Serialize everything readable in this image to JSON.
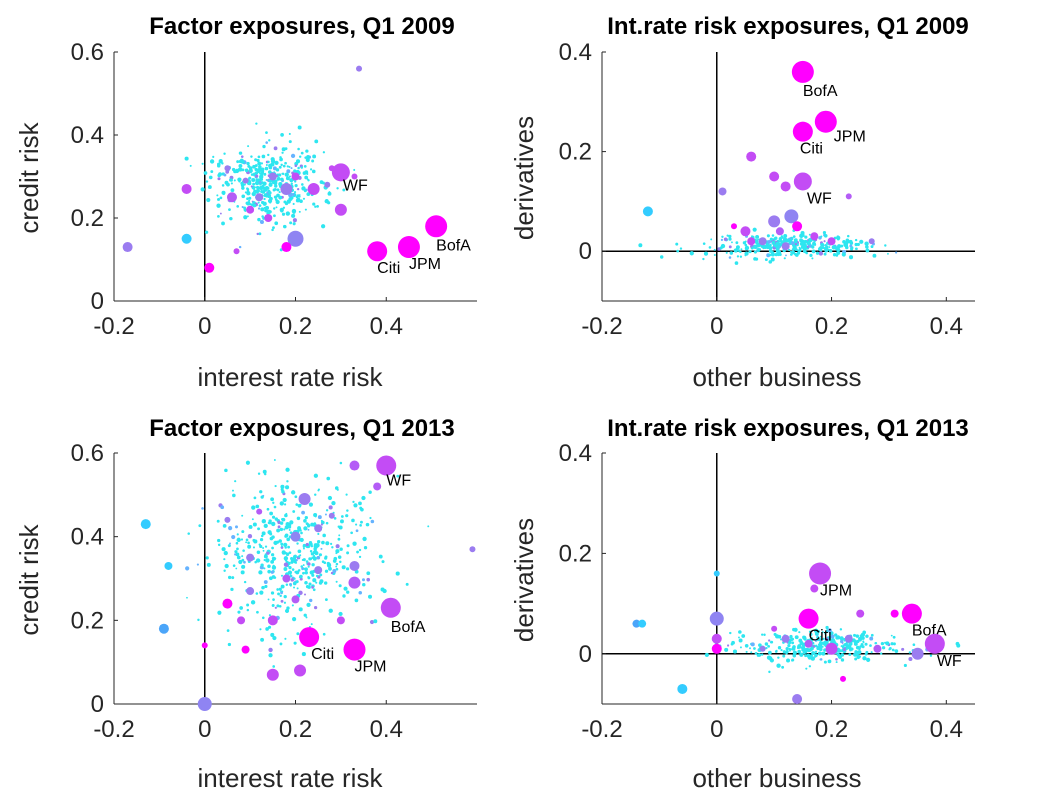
{
  "chart_data": [
    {
      "type": "scatter",
      "title": "Factor exposures, Q1 2009",
      "xlabel": "interest rate risk",
      "ylabel": "credit risk",
      "xlim": [
        -0.2,
        0.6
      ],
      "ylim": [
        0,
        0.6
      ],
      "xticks": [
        "-0.2",
        "0",
        "0.2",
        "0.4"
      ],
      "yticks": [
        "0",
        "0.2",
        "0.4",
        "0.6"
      ],
      "grid": false,
      "reference_lines": {
        "x": 0,
        "y": 0
      },
      "labeled_points": [
        {
          "label": "WF",
          "x": 0.3,
          "y": 0.31,
          "size": 9,
          "color": "#c34cf5"
        },
        {
          "label": "BofA",
          "x": 0.51,
          "y": 0.18,
          "size": 11,
          "color": "#ff00ff"
        },
        {
          "label": "Citi",
          "x": 0.38,
          "y": 0.12,
          "size": 10,
          "color": "#ff00ff"
        },
        {
          "label": "JPM",
          "x": 0.45,
          "y": 0.13,
          "size": 11,
          "color": "#ff00ff"
        }
      ],
      "points": [
        {
          "x": -0.17,
          "y": 0.13,
          "size": 5,
          "color": "#9b7cf0"
        },
        {
          "x": -0.04,
          "y": 0.27,
          "size": 5,
          "color": "#c34cf5"
        },
        {
          "x": -0.04,
          "y": 0.15,
          "size": 5,
          "color": "#33ccff"
        },
        {
          "x": 0.01,
          "y": 0.08,
          "size": 5,
          "color": "#ff00ff"
        },
        {
          "x": 0.2,
          "y": 0.15,
          "size": 8,
          "color": "#8f84f2"
        },
        {
          "x": 0.18,
          "y": 0.27,
          "size": 6,
          "color": "#9b7cf0"
        },
        {
          "x": 0.24,
          "y": 0.27,
          "size": 6,
          "color": "#c34cf5"
        },
        {
          "x": 0.18,
          "y": 0.13,
          "size": 5,
          "color": "#ff00ff"
        },
        {
          "x": 0.06,
          "y": 0.25,
          "size": 5,
          "color": "#b45cf6"
        },
        {
          "x": 0.3,
          "y": 0.22,
          "size": 6,
          "color": "#c34cf5"
        },
        {
          "x": 0.12,
          "y": 0.25,
          "size": 4,
          "color": "#9b7cf0"
        },
        {
          "x": 0.1,
          "y": 0.22,
          "size": 4,
          "color": "#c34cf5"
        },
        {
          "x": 0.15,
          "y": 0.3,
          "size": 4,
          "color": "#9b7cf0"
        },
        {
          "x": 0.05,
          "y": 0.32,
          "size": 3,
          "color": "#9b7cf0"
        },
        {
          "x": 0.2,
          "y": 0.3,
          "size": 4,
          "color": "#c34cf5"
        },
        {
          "x": 0.14,
          "y": 0.2,
          "size": 4,
          "color": "#c34cf5"
        },
        {
          "x": 0.27,
          "y": 0.28,
          "size": 3,
          "color": "#9b7cf0"
        },
        {
          "x": 0.28,
          "y": 0.32,
          "size": 3,
          "color": "#c34cf5"
        },
        {
          "x": 0.09,
          "y": 0.29,
          "size": 3,
          "color": "#9b7cf0"
        },
        {
          "x": 0.34,
          "y": 0.56,
          "size": 3,
          "color": "#9b7cf0"
        },
        {
          "x": 0.07,
          "y": 0.12,
          "size": 3,
          "color": "#c34cf5"
        },
        {
          "x": 0.33,
          "y": 0.3,
          "size": 3,
          "color": "#c34cf5"
        }
      ]
    },
    {
      "type": "scatter",
      "title": "Int.rate risk exposures, Q1 2009",
      "xlabel": "other business",
      "ylabel": "derivatives",
      "xlim": [
        -0.2,
        0.45
      ],
      "ylim": [
        -0.1,
        0.4
      ],
      "xticks": [
        "-0.2",
        "0",
        "0.2",
        "0.4"
      ],
      "yticks": [
        "0",
        "0.2",
        "0.4"
      ],
      "grid": false,
      "reference_lines": {
        "x": 0,
        "y": 0
      },
      "labeled_points": [
        {
          "label": "BofA",
          "x": 0.15,
          "y": 0.36,
          "size": 11,
          "color": "#ff00ff"
        },
        {
          "label": "Citi",
          "x": 0.15,
          "y": 0.24,
          "size": 10,
          "color": "#ff00ff"
        },
        {
          "label": "JPM",
          "x": 0.19,
          "y": 0.26,
          "size": 11,
          "color": "#ff00ff"
        },
        {
          "label": "WF",
          "x": 0.15,
          "y": 0.14,
          "size": 9,
          "color": "#c34cf5"
        }
      ],
      "points": [
        {
          "x": -0.12,
          "y": 0.08,
          "size": 5,
          "color": "#33ccff"
        },
        {
          "x": 0.06,
          "y": 0.19,
          "size": 5,
          "color": "#c34cf5"
        },
        {
          "x": 0.01,
          "y": 0.12,
          "size": 4,
          "color": "#9b7cf0"
        },
        {
          "x": 0.13,
          "y": 0.07,
          "size": 7,
          "color": "#8f84f2"
        },
        {
          "x": 0.1,
          "y": 0.15,
          "size": 5,
          "color": "#c34cf5"
        },
        {
          "x": 0.12,
          "y": 0.13,
          "size": 5,
          "color": "#c34cf5"
        },
        {
          "x": 0.1,
          "y": 0.06,
          "size": 6,
          "color": "#9b7cf0"
        },
        {
          "x": 0.14,
          "y": 0.05,
          "size": 5,
          "color": "#ff00ff"
        },
        {
          "x": 0.05,
          "y": 0.04,
          "size": 5,
          "color": "#c34cf5"
        },
        {
          "x": 0.11,
          "y": 0.04,
          "size": 4,
          "color": "#b45cf6"
        },
        {
          "x": 0.08,
          "y": 0.02,
          "size": 4,
          "color": "#9b7cf0"
        },
        {
          "x": 0.2,
          "y": 0.02,
          "size": 4,
          "color": "#c34cf5"
        },
        {
          "x": 0.23,
          "y": 0.11,
          "size": 3,
          "color": "#b45cf6"
        },
        {
          "x": 0.03,
          "y": 0.05,
          "size": 3,
          "color": "#ff00ff"
        },
        {
          "x": 0.17,
          "y": 0.03,
          "size": 4,
          "color": "#c34cf5"
        },
        {
          "x": 0.06,
          "y": 0.02,
          "size": 4,
          "color": "#c34cf5"
        },
        {
          "x": 0.27,
          "y": 0.02,
          "size": 3,
          "color": "#9b7cf0"
        },
        {
          "x": 0.12,
          "y": 0.01,
          "size": 4,
          "color": "#9b7cf0"
        }
      ]
    },
    {
      "type": "scatter",
      "title": "Factor exposures, Q1 2013",
      "xlabel": "interest rate risk",
      "ylabel": "credit risk",
      "xlim": [
        -0.2,
        0.6
      ],
      "ylim": [
        0,
        0.6
      ],
      "xticks": [
        "-0.2",
        "0",
        "0.2",
        "0.4"
      ],
      "yticks": [
        "0",
        "0.2",
        "0.4",
        "0.6"
      ],
      "grid": false,
      "reference_lines": {
        "x": 0,
        "y": 0
      },
      "labeled_points": [
        {
          "label": "WF",
          "x": 0.4,
          "y": 0.57,
          "size": 10,
          "color": "#c34cf5"
        },
        {
          "label": "BofA",
          "x": 0.41,
          "y": 0.23,
          "size": 10,
          "color": "#c34cf5"
        },
        {
          "label": "Citi",
          "x": 0.23,
          "y": 0.16,
          "size": 10,
          "color": "#ff00ff"
        },
        {
          "label": "JPM",
          "x": 0.33,
          "y": 0.13,
          "size": 11,
          "color": "#ff00ff"
        }
      ],
      "points": [
        {
          "x": -0.13,
          "y": 0.43,
          "size": 5,
          "color": "#33ccff"
        },
        {
          "x": -0.08,
          "y": 0.33,
          "size": 4,
          "color": "#33ccff"
        },
        {
          "x": -0.09,
          "y": 0.18,
          "size": 5,
          "color": "#4ba5f9"
        },
        {
          "x": 0.0,
          "y": 0.0,
          "size": 7,
          "color": "#8f84f2"
        },
        {
          "x": 0.21,
          "y": 0.08,
          "size": 6,
          "color": "#c34cf5"
        },
        {
          "x": 0.15,
          "y": 0.07,
          "size": 6,
          "color": "#c34cf5"
        },
        {
          "x": 0.33,
          "y": 0.57,
          "size": 5,
          "color": "#b45cf6"
        },
        {
          "x": 0.22,
          "y": 0.49,
          "size": 6,
          "color": "#9b7cf0"
        },
        {
          "x": 0.33,
          "y": 0.33,
          "size": 5,
          "color": "#9b7cf0"
        },
        {
          "x": 0.33,
          "y": 0.29,
          "size": 6,
          "color": "#b45cf6"
        },
        {
          "x": 0.38,
          "y": 0.52,
          "size": 4,
          "color": "#b45cf6"
        },
        {
          "x": 0.2,
          "y": 0.4,
          "size": 5,
          "color": "#8f84f2"
        },
        {
          "x": 0.15,
          "y": 0.2,
          "size": 5,
          "color": "#c34cf5"
        },
        {
          "x": 0.05,
          "y": 0.24,
          "size": 5,
          "color": "#ff00ff"
        },
        {
          "x": 0.18,
          "y": 0.3,
          "size": 4,
          "color": "#b45cf6"
        },
        {
          "x": 0.1,
          "y": 0.27,
          "size": 4,
          "color": "#9b7cf0"
        },
        {
          "x": 0.1,
          "y": 0.35,
          "size": 4,
          "color": "#9b7cf0"
        },
        {
          "x": 0.25,
          "y": 0.42,
          "size": 4,
          "color": "#9b7cf0"
        },
        {
          "x": 0.3,
          "y": 0.2,
          "size": 4,
          "color": "#c34cf5"
        },
        {
          "x": 0.05,
          "y": 0.44,
          "size": 3,
          "color": "#9b7cf0"
        },
        {
          "x": 0.08,
          "y": 0.2,
          "size": 4,
          "color": "#c34cf5"
        },
        {
          "x": 0.09,
          "y": 0.13,
          "size": 4,
          "color": "#ff00ff"
        },
        {
          "x": 0.2,
          "y": 0.25,
          "size": 4,
          "color": "#b45cf6"
        },
        {
          "x": 0.25,
          "y": 0.32,
          "size": 4,
          "color": "#9b7cf0"
        },
        {
          "x": 0.28,
          "y": 0.45,
          "size": 3,
          "color": "#9b7cf0"
        },
        {
          "x": 0.59,
          "y": 0.37,
          "size": 3,
          "color": "#9b7cf0"
        },
        {
          "x": 0.0,
          "y": 0.14,
          "size": 3,
          "color": "#ff00ff"
        },
        {
          "x": 0.12,
          "y": 0.46,
          "size": 3,
          "color": "#b45cf6"
        }
      ]
    },
    {
      "type": "scatter",
      "title": "Int.rate risk exposures, Q1 2013",
      "xlabel": "other business",
      "ylabel": "derivatives",
      "xlim": [
        -0.2,
        0.45
      ],
      "ylim": [
        -0.1,
        0.4
      ],
      "xticks": [
        "-0.2",
        "0",
        "0.2",
        "0.4"
      ],
      "yticks": [
        "0",
        "0.2",
        "0.4"
      ],
      "grid": false,
      "reference_lines": {
        "x": 0,
        "y": 0
      },
      "labeled_points": [
        {
          "label": "JPM",
          "x": 0.18,
          "y": 0.16,
          "size": 11,
          "color": "#c34cf5"
        },
        {
          "label": "Citi",
          "x": 0.16,
          "y": 0.07,
          "size": 10,
          "color": "#ff00ff"
        },
        {
          "label": "BofA",
          "x": 0.34,
          "y": 0.08,
          "size": 10,
          "color": "#ff00ff"
        },
        {
          "label": "WF",
          "x": 0.38,
          "y": 0.02,
          "size": 10,
          "color": "#c34cf5"
        }
      ],
      "points": [
        {
          "x": -0.14,
          "y": 0.06,
          "size": 4,
          "color": "#4ba5f9"
        },
        {
          "x": -0.13,
          "y": 0.06,
          "size": 4,
          "color": "#33ccff"
        },
        {
          "x": -0.06,
          "y": -0.07,
          "size": 5,
          "color": "#33ccff"
        },
        {
          "x": 0.0,
          "y": 0.07,
          "size": 7,
          "color": "#8f84f2"
        },
        {
          "x": 0.0,
          "y": 0.16,
          "size": 3,
          "color": "#33ccff"
        },
        {
          "x": 0.0,
          "y": 0.03,
          "size": 5,
          "color": "#c34cf5"
        },
        {
          "x": 0.0,
          "y": 0.01,
          "size": 5,
          "color": "#ff00ff"
        },
        {
          "x": 0.2,
          "y": 0.01,
          "size": 6,
          "color": "#c34cf5"
        },
        {
          "x": 0.35,
          "y": 0.0,
          "size": 6,
          "color": "#9b7cf0"
        },
        {
          "x": 0.14,
          "y": -0.09,
          "size": 5,
          "color": "#9b7cf0"
        },
        {
          "x": 0.17,
          "y": 0.13,
          "size": 4,
          "color": "#c34cf5"
        },
        {
          "x": 0.25,
          "y": 0.08,
          "size": 4,
          "color": "#c34cf5"
        },
        {
          "x": 0.31,
          "y": 0.08,
          "size": 4,
          "color": "#ff00ff"
        },
        {
          "x": 0.12,
          "y": 0.03,
          "size": 4,
          "color": "#9b7cf0"
        },
        {
          "x": 0.16,
          "y": 0.02,
          "size": 4,
          "color": "#b45cf6"
        },
        {
          "x": 0.23,
          "y": 0.03,
          "size": 4,
          "color": "#9b7cf0"
        },
        {
          "x": 0.28,
          "y": 0.01,
          "size": 4,
          "color": "#b45cf6"
        },
        {
          "x": 0.1,
          "y": 0.05,
          "size": 3,
          "color": "#c34cf5"
        },
        {
          "x": 0.08,
          "y": 0.01,
          "size": 3,
          "color": "#9b7cf0"
        },
        {
          "x": 0.22,
          "y": -0.05,
          "size": 3,
          "color": "#ff00ff"
        }
      ]
    }
  ]
}
